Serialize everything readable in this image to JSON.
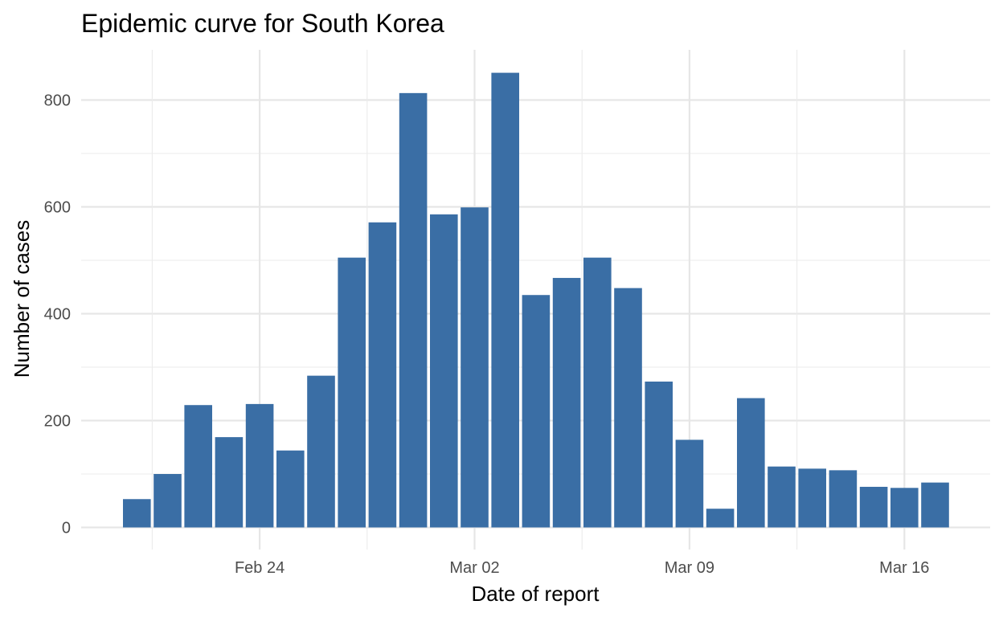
{
  "chart_data": {
    "type": "bar",
    "title": "Epidemic curve for South Korea",
    "xlabel": "Date of report",
    "ylabel": "Number of cases",
    "bar_color": "#3A6EA5",
    "grid": true,
    "legend": "none",
    "categories": [
      "2020-02-20",
      "2020-02-21",
      "2020-02-22",
      "2020-02-23",
      "2020-02-24",
      "2020-02-25",
      "2020-02-26",
      "2020-02-27",
      "2020-02-28",
      "2020-02-29",
      "2020-03-01",
      "2020-03-02",
      "2020-03-03",
      "2020-03-04",
      "2020-03-05",
      "2020-03-06",
      "2020-03-07",
      "2020-03-08",
      "2020-03-09",
      "2020-03-10",
      "2020-03-11",
      "2020-03-12",
      "2020-03-13",
      "2020-03-14",
      "2020-03-15",
      "2020-03-16",
      "2020-03-17"
    ],
    "values": [
      53,
      100,
      229,
      169,
      231,
      144,
      284,
      505,
      571,
      813,
      586,
      599,
      851,
      435,
      467,
      505,
      448,
      273,
      164,
      35,
      242,
      114,
      110,
      107,
      76,
      74,
      84
    ],
    "x_ticks": [
      {
        "date": "2020-02-24",
        "label": "Feb 24"
      },
      {
        "date": "2020-03-02",
        "label": "Mar 02"
      },
      {
        "date": "2020-03-09",
        "label": "Mar 09"
      },
      {
        "date": "2020-03-16",
        "label": "Mar 16"
      }
    ],
    "y_ticks": [
      0,
      200,
      400,
      600,
      800
    ],
    "ylim": [
      -40,
      894
    ]
  }
}
